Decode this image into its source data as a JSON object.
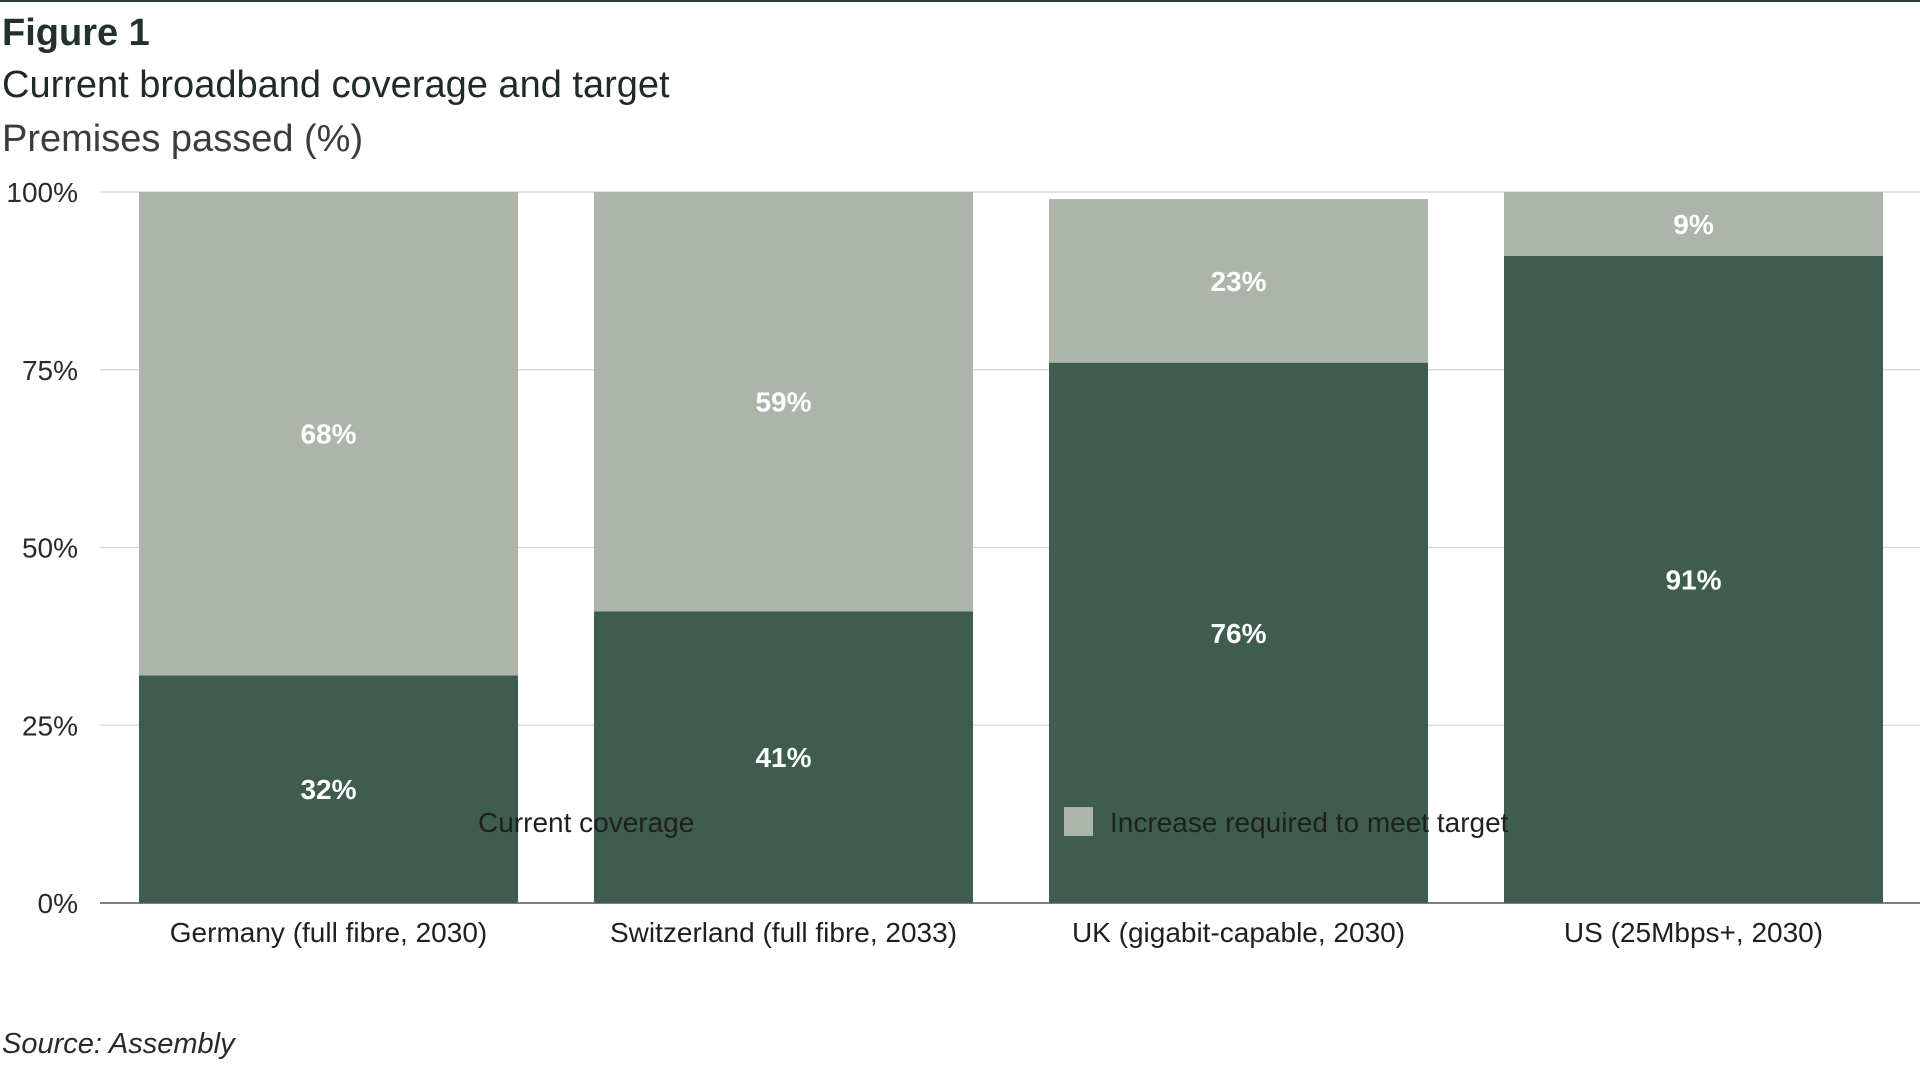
{
  "figure": {
    "label": "Figure 1",
    "title": "Current broadband coverage and target",
    "subtitle": "Premises passed (%)",
    "source": "Source: Assembly"
  },
  "colors": {
    "current": "#3e5d4f",
    "increase": "#adb4aa",
    "grid": "#d5d5d5",
    "axis": "#555555",
    "bar_label": "#ffffff"
  },
  "chart_data": {
    "type": "bar",
    "stacked": true,
    "categories": [
      "Germany (full fibre, 2030)",
      "Switzerland (full fibre, 2033)",
      "UK (gigabit-capable, 2030)",
      "US (25Mbps+, 2030)"
    ],
    "series": [
      {
        "name": "Current coverage",
        "values": [
          32,
          41,
          76,
          91
        ],
        "labels": [
          "32%",
          "41%",
          "76%",
          "91%"
        ]
      },
      {
        "name": "Increase required to meet target",
        "values": [
          68,
          59,
          23,
          9
        ],
        "labels": [
          "68%",
          "59%",
          "23%",
          "9%"
        ]
      }
    ],
    "ylim": [
      0,
      100
    ],
    "y_ticks": [
      0,
      25,
      50,
      75,
      100
    ],
    "y_tick_labels": [
      "0%",
      "25%",
      "50%",
      "75%",
      "100%"
    ],
    "grid": true,
    "legend_position": "bottom"
  }
}
